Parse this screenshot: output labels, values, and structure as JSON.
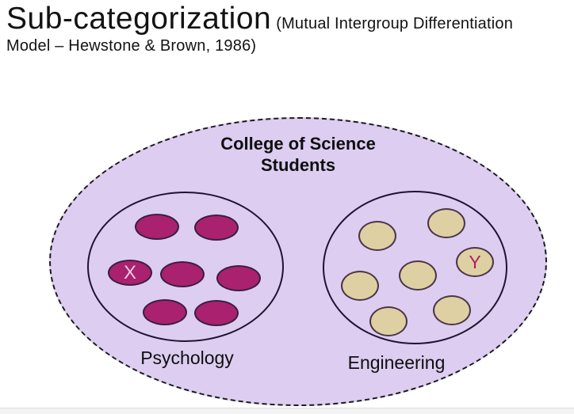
{
  "slide": {
    "title": {
      "main": "Sub-categorization",
      "subtitle_line1": "(Mutual Intergroup Differentiation",
      "subtitle_line2": "Model – Hewstone & Brown, 1986)"
    },
    "diagram": {
      "superordinate_label_line1": "College of Science",
      "superordinate_label_line2": "Students",
      "subgroups": [
        {
          "label": "Psychology",
          "member_count": 7,
          "marked_member_label": "X",
          "member_color": "#A9216F",
          "marked_label_color": "#F2C7E7"
        },
        {
          "label": "Engineering",
          "member_count": 7,
          "marked_member_label": "Y",
          "member_color": "#DED0A2",
          "marked_label_color": "#B01F5F"
        }
      ],
      "colors": {
        "outer_ellipse_fill": "#DCCDF1",
        "outer_ellipse_border": "#1A1A1A",
        "subgroup_circle_border": "#1F1430"
      }
    }
  }
}
